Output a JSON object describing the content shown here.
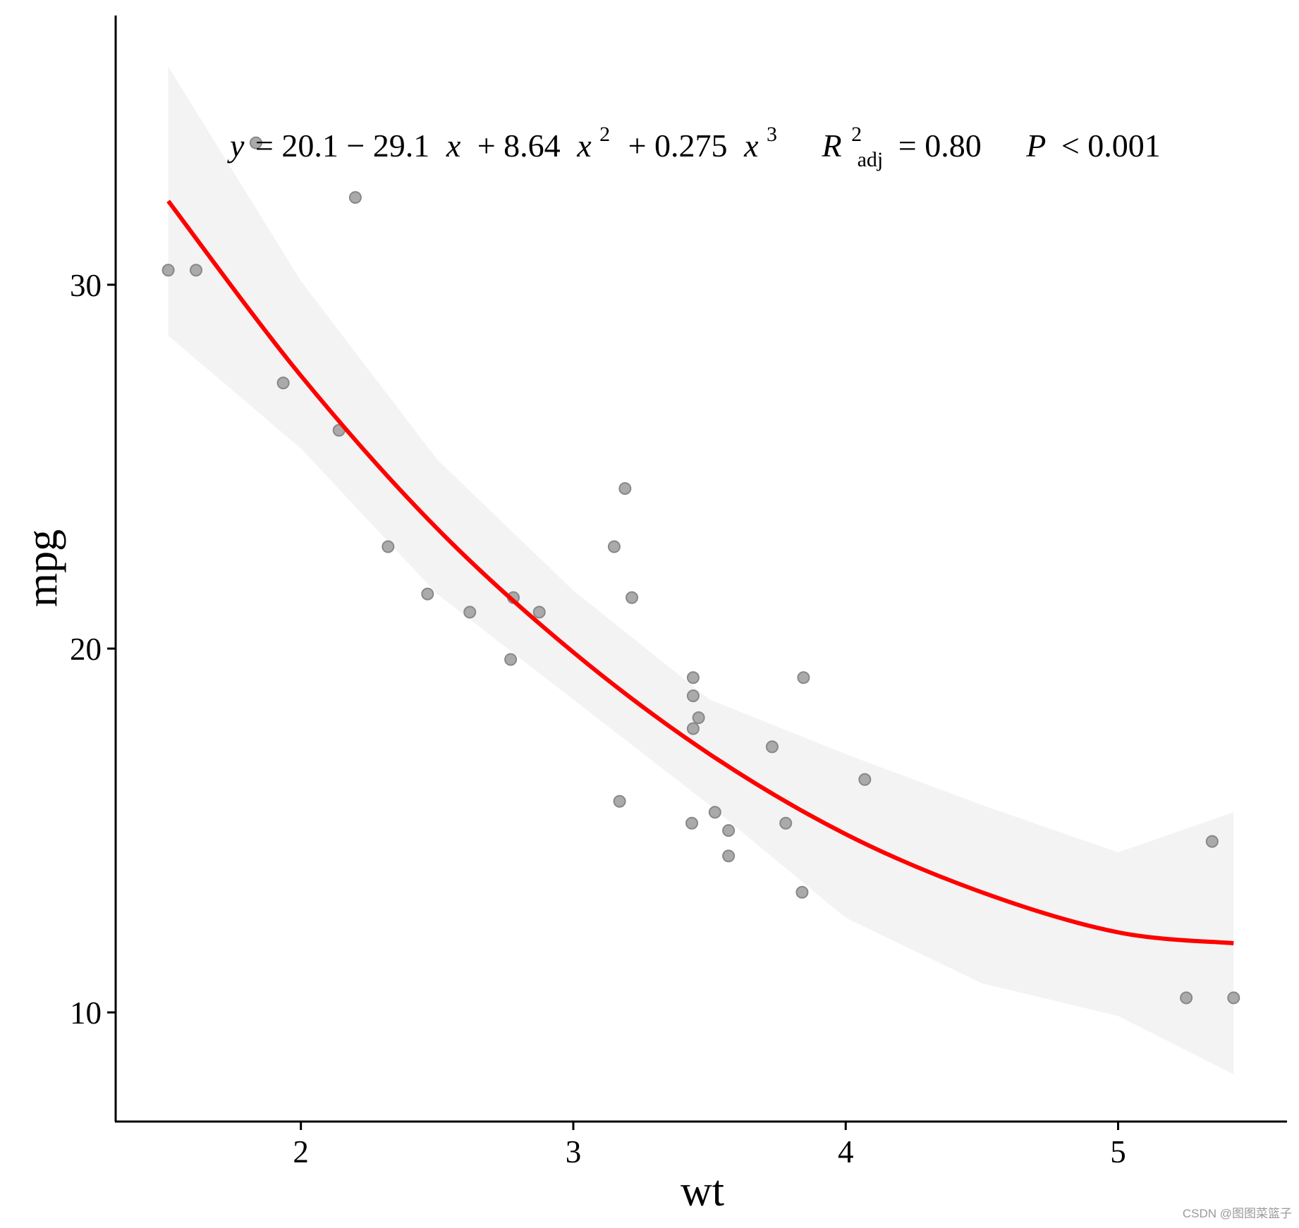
{
  "chart_data": {
    "type": "scatter",
    "title": "",
    "xlabel": "wt",
    "ylabel": "mpg",
    "xlim": [
      1.32,
      5.62
    ],
    "ylim": [
      7.0,
      37.4
    ],
    "x_ticks": [
      "2",
      "3",
      "4",
      "5"
    ],
    "y_ticks": [
      "10",
      "20",
      "30"
    ],
    "grid": false,
    "points": [
      {
        "x": 2.62,
        "y": 21.0
      },
      {
        "x": 2.875,
        "y": 21.0
      },
      {
        "x": 2.32,
        "y": 22.8
      },
      {
        "x": 3.215,
        "y": 21.4
      },
      {
        "x": 3.44,
        "y": 18.7
      },
      {
        "x": 3.46,
        "y": 18.1
      },
      {
        "x": 3.57,
        "y": 14.3
      },
      {
        "x": 3.19,
        "y": 24.4
      },
      {
        "x": 3.15,
        "y": 22.8
      },
      {
        "x": 3.44,
        "y": 19.2
      },
      {
        "x": 3.44,
        "y": 17.8
      },
      {
        "x": 4.07,
        "y": 16.4
      },
      {
        "x": 3.73,
        "y": 17.3
      },
      {
        "x": 3.78,
        "y": 15.2
      },
      {
        "x": 5.25,
        "y": 10.4
      },
      {
        "x": 5.424,
        "y": 10.4
      },
      {
        "x": 5.345,
        "y": 14.7
      },
      {
        "x": 2.2,
        "y": 32.4
      },
      {
        "x": 1.615,
        "y": 30.4
      },
      {
        "x": 1.835,
        "y": 33.9
      },
      {
        "x": 2.465,
        "y": 21.5
      },
      {
        "x": 3.52,
        "y": 15.5
      },
      {
        "x": 3.435,
        "y": 15.2
      },
      {
        "x": 3.84,
        "y": 13.3
      },
      {
        "x": 3.845,
        "y": 19.2
      },
      {
        "x": 1.935,
        "y": 27.3
      },
      {
        "x": 2.14,
        "y": 26.0
      },
      {
        "x": 1.513,
        "y": 30.4
      },
      {
        "x": 3.17,
        "y": 15.8
      },
      {
        "x": 2.77,
        "y": 19.7
      },
      {
        "x": 3.57,
        "y": 15.0
      },
      {
        "x": 2.78,
        "y": 21.4
      }
    ],
    "fit": {
      "type": "cubic polynomial",
      "x_range": [
        1.513,
        5.424
      ],
      "curve": [
        {
          "x": 1.513,
          "y": 32.3
        },
        {
          "x": 2.0,
          "y": 27.5
        },
        {
          "x": 2.5,
          "y": 23.3
        },
        {
          "x": 3.0,
          "y": 19.9
        },
        {
          "x": 3.5,
          "y": 17.1
        },
        {
          "x": 4.0,
          "y": 14.9
        },
        {
          "x": 4.5,
          "y": 13.3
        },
        {
          "x": 5.0,
          "y": 12.2
        },
        {
          "x": 5.424,
          "y": 11.9
        }
      ],
      "ci_upper": [
        {
          "x": 1.513,
          "y": 36.0
        },
        {
          "x": 2.0,
          "y": 30.1
        },
        {
          "x": 2.5,
          "y": 25.2
        },
        {
          "x": 3.0,
          "y": 21.6
        },
        {
          "x": 3.5,
          "y": 18.6
        },
        {
          "x": 4.0,
          "y": 17.1
        },
        {
          "x": 4.5,
          "y": 15.7
        },
        {
          "x": 5.0,
          "y": 14.4
        },
        {
          "x": 5.424,
          "y": 15.5
        }
      ],
      "ci_lower": [
        {
          "x": 1.513,
          "y": 28.6
        },
        {
          "x": 2.0,
          "y": 25.5
        },
        {
          "x": 2.5,
          "y": 21.5
        },
        {
          "x": 3.0,
          "y": 18.6
        },
        {
          "x": 3.5,
          "y": 15.7
        },
        {
          "x": 4.0,
          "y": 12.6
        },
        {
          "x": 4.5,
          "y": 10.8
        },
        {
          "x": 5.0,
          "y": 9.9
        },
        {
          "x": 5.424,
          "y": 8.3
        }
      ],
      "line_color": "#ff0000",
      "band_color": "#f3f3f3"
    },
    "point_color": "#aaaaaa",
    "point_stroke": "#888888",
    "annotation": {
      "y": "y",
      "equals1": "= 20.1 − 29.1",
      "x1": "x",
      "plus1": "+ 8.64",
      "x2": "x",
      "sup2": "2",
      "plus2": "+ 0.275",
      "x3": "x",
      "sup3": "3",
      "r": "R",
      "r_sup": "2",
      "r_sub": "adj",
      "r_val": "= 0.80",
      "p": "P",
      "p_val": "< 0.001"
    }
  },
  "watermark": "CSDN @图图菜篮子"
}
